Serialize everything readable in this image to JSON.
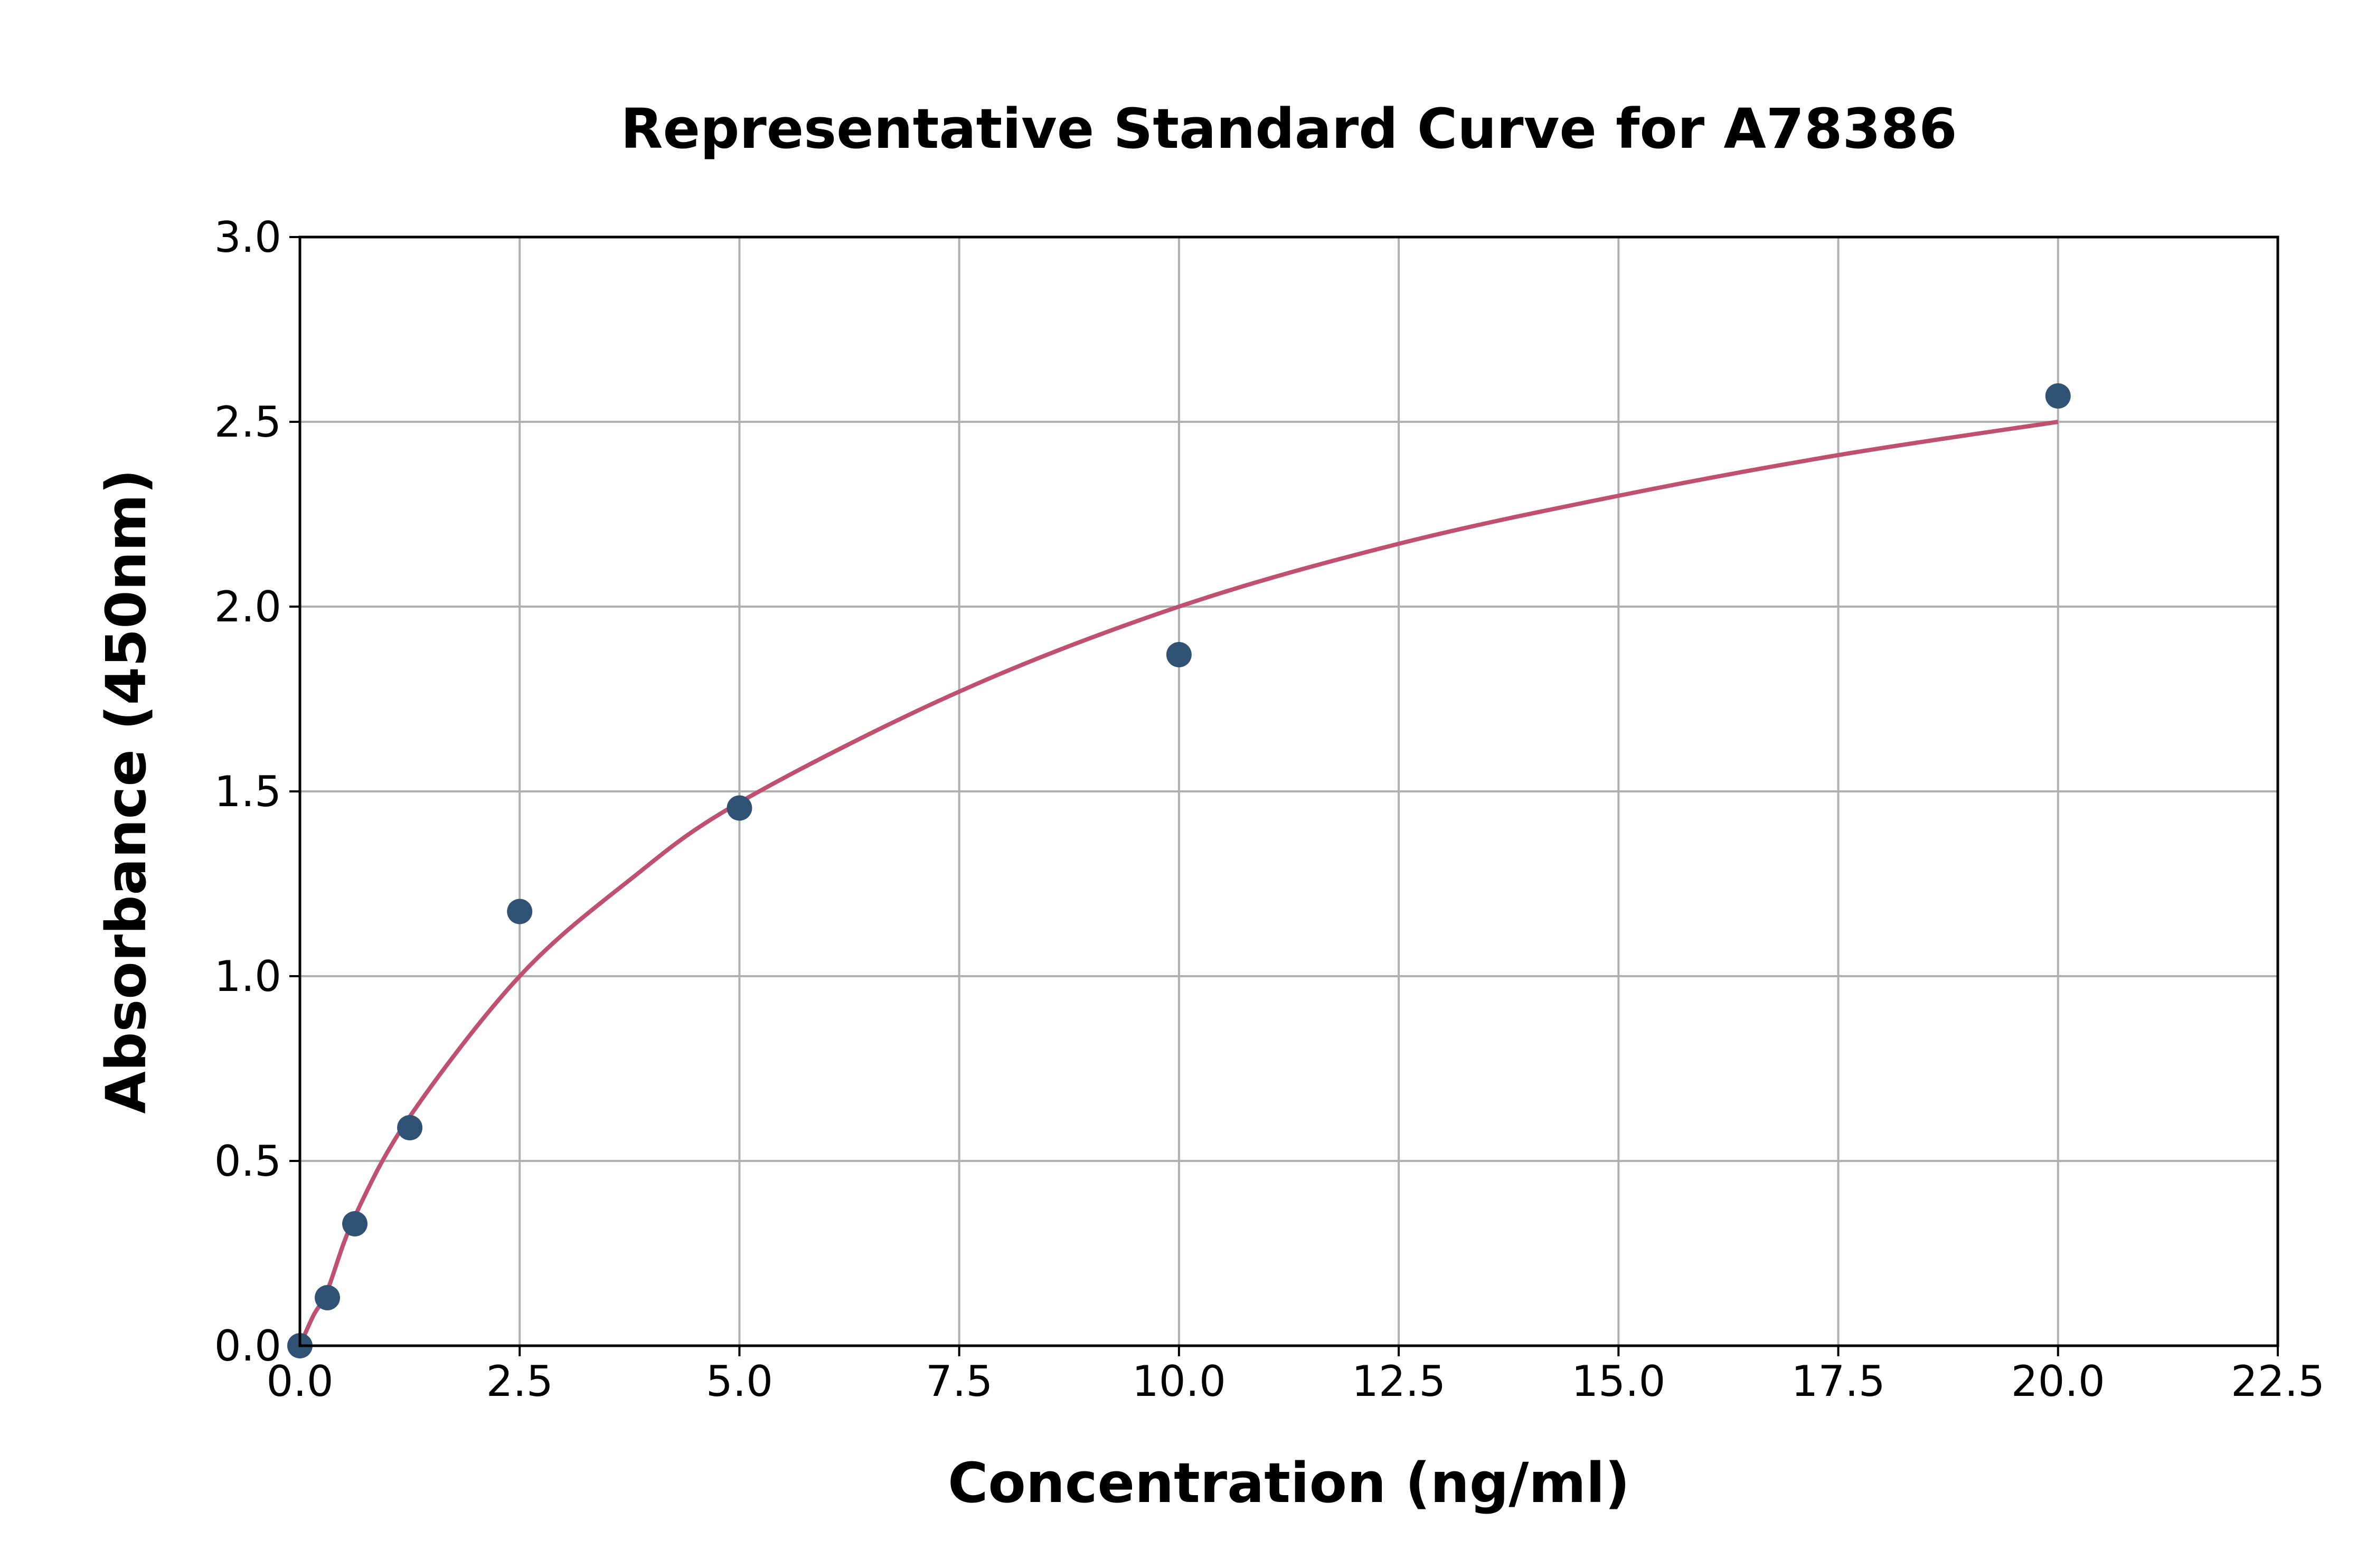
{
  "chart_data": {
    "type": "scatter",
    "title": "Representative Standard Curve for A78386",
    "xlabel": "Concentration (ng/ml)",
    "ylabel": "Absorbance (450nm)",
    "xlim": [
      0,
      22.5
    ],
    "ylim": [
      0,
      3.0
    ],
    "xticks": [
      "0.0",
      "2.5",
      "5.0",
      "7.5",
      "10.0",
      "12.5",
      "15.0",
      "17.5",
      "20.0",
      "22.5"
    ],
    "yticks": [
      "0.0",
      "0.5",
      "1.0",
      "1.5",
      "2.0",
      "2.5",
      "3.0"
    ],
    "grid": true,
    "points": {
      "x": [
        0,
        0.3125,
        0.625,
        1.25,
        2.5,
        5,
        10,
        20
      ],
      "y": [
        0.0,
        0.13,
        0.33,
        0.59,
        1.175,
        1.455,
        1.87,
        2.57
      ],
      "color": "#2f5275"
    },
    "fit_curve": {
      "x": [
        0,
        0.15,
        0.3125,
        0.625,
        1.25,
        2.5,
        3.75,
        5,
        7.5,
        10,
        12.5,
        15,
        17.5,
        20
      ],
      "y": [
        0,
        0.08,
        0.15,
        0.35,
        0.62,
        1.0,
        1.26,
        1.47,
        1.77,
        2.0,
        2.17,
        2.3,
        2.41,
        2.5
      ],
      "color": "#c0506f"
    }
  }
}
